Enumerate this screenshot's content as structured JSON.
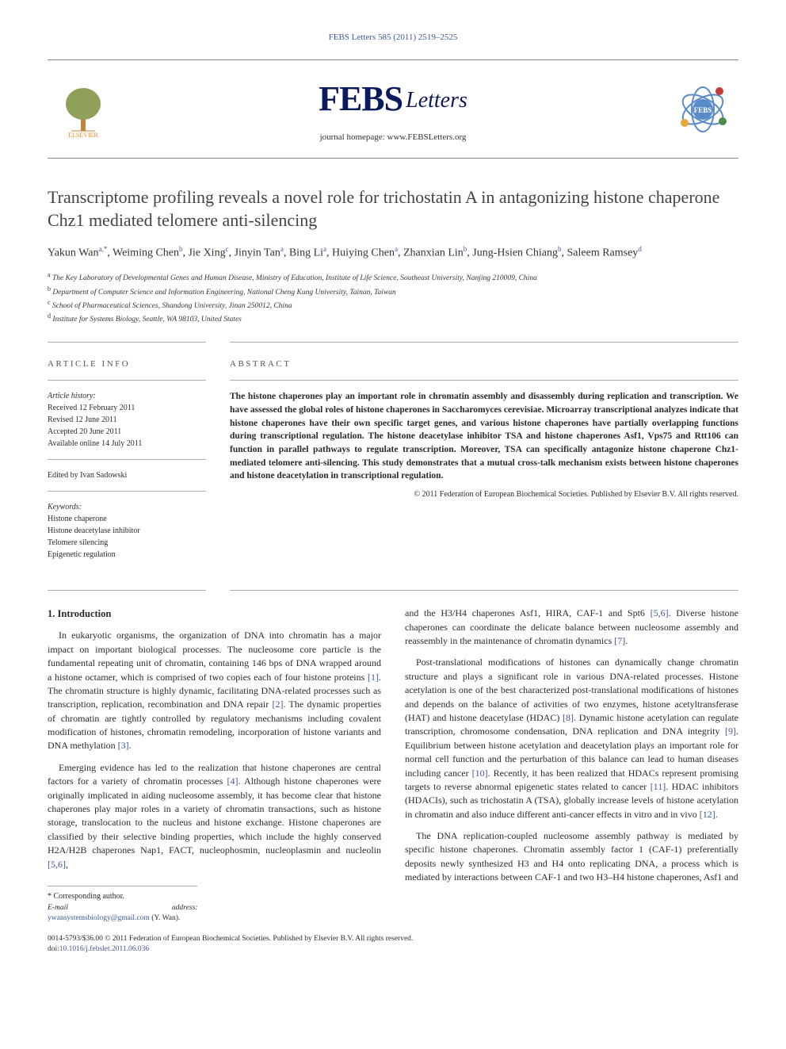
{
  "page": {
    "background": "#ffffff",
    "text_color": "#2a2a2a",
    "link_color": "#3b5998",
    "accent_orange": "#f68b1f",
    "accent_navy": "#0a1a5e"
  },
  "header": {
    "meta_line": "FEBS Letters 585 (2011) 2519–2525",
    "publisher_logo_label": "ELSEVIER",
    "journal_name_main": "FEBS",
    "journal_name_sub": "Letters",
    "homepage_label": "journal homepage:",
    "homepage_url": "www.FEBSLetters.org",
    "badge_label": "FEBS"
  },
  "article": {
    "title": "Transcriptome profiling reveals a novel role for trichostatin A in antagonizing histone chaperone Chz1 mediated telomere anti-silencing",
    "authors_html": "Yakun Wan<sup>a,*</sup>, Weiming Chen<sup>b</sup>, Jie Xing<sup>c</sup>, Jinyin Tan<sup>a</sup>, Bing Li<sup>a</sup>, Huiying Chen<sup>a</sup>, Zhanxian Lin<sup>b</sup>, Jung-Hsien Chiang<sup>b</sup>, Saleem Ramsey<sup>d</sup>",
    "affiliations": [
      {
        "sup": "a",
        "text": "The Key Laboratory of Developmental Genes and Human Disease, Ministry of Education, Institute of Life Science, Southeast University, Nanjing 210009, China"
      },
      {
        "sup": "b",
        "text": "Department of Computer Science and Information Engineering, National Cheng Kung University, Tainan, Taiwan"
      },
      {
        "sup": "c",
        "text": "School of Pharmaceutical Sciences, Shandong University, Jinan 250012, China"
      },
      {
        "sup": "d",
        "text": "Institute for Systems Biology, Seattle, WA 98103, United States"
      }
    ]
  },
  "info": {
    "heading": "ARTICLE INFO",
    "history_label": "Article history:",
    "received": "Received 12 February 2011",
    "revised": "Revised 12 June 2011",
    "accepted": "Accepted 20 June 2011",
    "online": "Available online 14 July 2011",
    "edited_by": "Edited by Ivan Sadowski",
    "keywords_label": "Keywords:",
    "keywords": [
      "Histone chaperone",
      "Histone deacetylase inhibitor",
      "Telomere silencing",
      "Epigenetic regulation"
    ]
  },
  "abstract": {
    "heading": "ABSTRACT",
    "text": "The histone chaperones play an important role in chromatin assembly and disassembly during replication and transcription. We have assessed the global roles of histone chaperones in Saccharomyces cerevisiae. Microarray transcriptional analyzes indicate that histone chaperones have their own specific target genes, and various histone chaperones have partially overlapping functions during transcriptional regulation. The histone deacetylase inhibitor TSA and histone chaperones Asf1, Vps75 and Rtt106 can function in parallel pathways to regulate transcription. Moreover, TSA can specifically antagonize histone chaperone Chz1-mediated telomere anti-silencing. This study demonstrates that a mutual cross-talk mechanism exists between histone chaperones and histone deacetylation in transcriptional regulation.",
    "copyright": "© 2011 Federation of European Biochemical Societies. Published by Elsevier B.V. All rights reserved."
  },
  "body": {
    "section1_heading": "1. Introduction",
    "col1_p1": "In eukaryotic organisms, the organization of DNA into chromatin has a major impact on important biological processes. The nucleosome core particle is the fundamental repeating unit of chromatin, containing 146 bps of DNA wrapped around a histone octamer, which is comprised of two copies each of four histone proteins [1]. The chromatin structure is highly dynamic, facilitating DNA-related processes such as transcription, replication, recombination and DNA repair [2]. The dynamic properties of chromatin are tightly controlled by regulatory mechanisms including covalent modification of histones, chromatin remodeling, incorporation of histone variants and DNA methylation [3].",
    "col1_p2": "Emerging evidence has led to the realization that histone chaperones are central factors for a variety of chromatin processes [4]. Although histone chaperones were originally implicated in aiding nucleosome assembly, it has become clear that histone chaperones play major roles in a variety of chromatin transactions, such as histone storage, translocation to the nucleus and histone exchange. Histone chaperones are classified by their selective binding properties, which include the highly conserved H2A/H2B chaperones Nap1, FACT, nucleophosmin, nucleoplasmin and nucleolin [5,6],",
    "col2_p1": "and the H3/H4 chaperones Asf1, HIRA, CAF-1 and Spt6 [5,6]. Diverse histone chaperones can coordinate the delicate balance between nucleosome assembly and reassembly in the maintenance of chromatin dynamics [7].",
    "col2_p2": "Post-translational modifications of histones can dynamically change chromatin structure and plays a significant role in various DNA-related processes. Histone acetylation is one of the best characterized post-translational modifications of histones and depends on the balance of activities of two enzymes, histone acetyltransferase (HAT) and histone deacetylase (HDAC) [8]. Dynamic histone acetylation can regulate transcription, chromosome condensation, DNA replication and DNA integrity [9]. Equilibrium between histone acetylation and deacetylation plays an important role for normal cell function and the perturbation of this balance can lead to human diseases including cancer [10]. Recently, it has been realized that HDACs represent promising targets to reverse abnormal epigenetic states related to cancer [11]. HDAC inhibitors (HDACIs), such as trichostatin A (TSA), globally increase levels of histone acetylation in chromatin and also induce different anti-cancer effects in vitro and in vivo [12].",
    "col2_p3": "The DNA replication-coupled nucleosome assembly pathway is mediated by specific histone chaperones. Chromatin assembly factor 1 (CAF-1) preferentially deposits newly synthesized H3 and H4 onto replicating DNA, a process which is mediated by interactions between CAF-1 and two H3–H4 histone chaperones, Asf1 and"
  },
  "footer": {
    "corr_label": "* Corresponding author.",
    "email_label": "E-mail address:",
    "email": "ywansystemsbiology@gmail.com",
    "email_owner": "(Y. Wan).",
    "issn_line": "0014-5793/$36.00 © 2011 Federation of European Biochemical Societies. Published by Elsevier B.V. All rights reserved.",
    "doi_label": "doi:",
    "doi": "10.1016/j.febslet.2011.06.036"
  }
}
